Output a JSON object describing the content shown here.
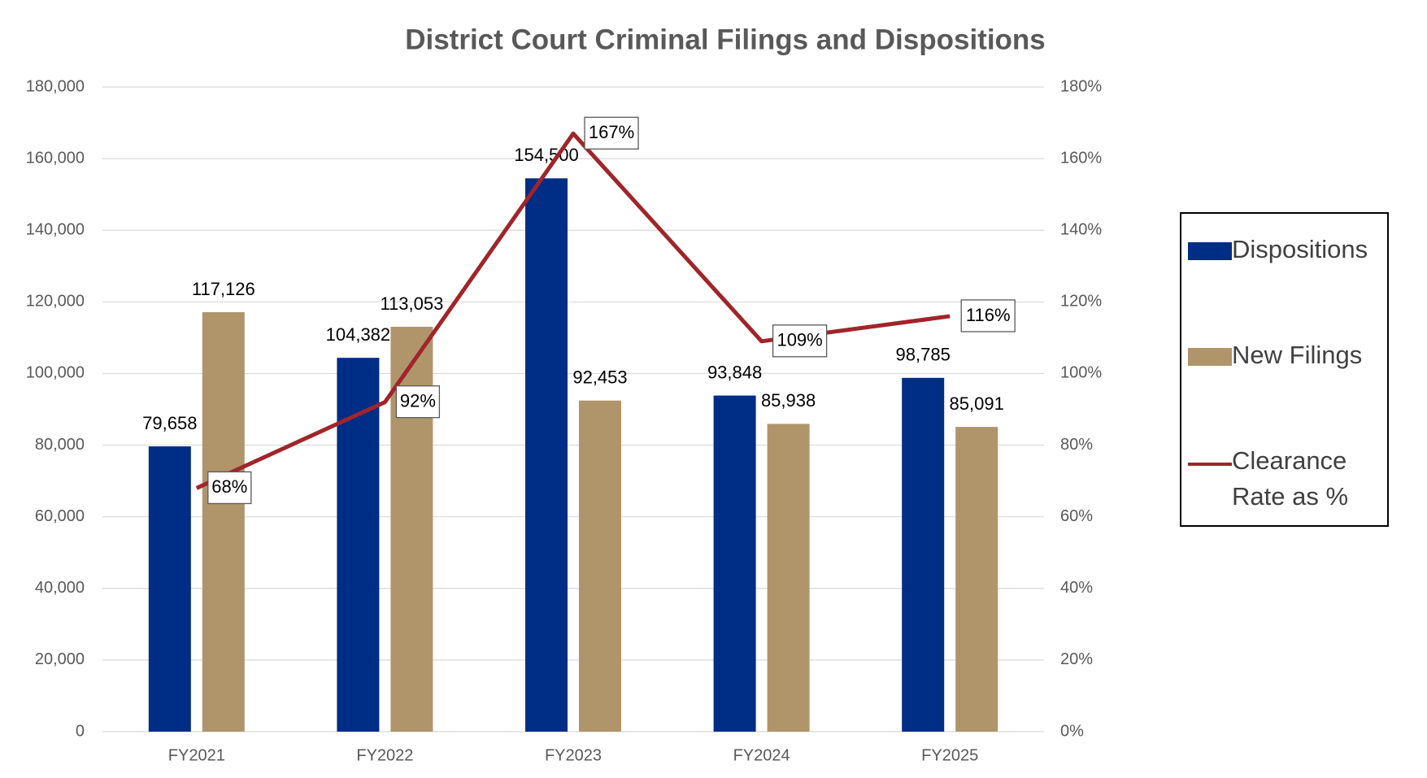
{
  "chart_data": {
    "type": "bar",
    "title": "District Court Criminal Filings and Dispositions",
    "categories": [
      "FY2021",
      "FY2022",
      "FY2023",
      "FY2024",
      "FY2025"
    ],
    "series": [
      {
        "name": "Dispositions",
        "type": "bar",
        "color": "#002d86",
        "values": [
          79658,
          104382,
          154500,
          93848,
          98785
        ],
        "value_labels": [
          "79,658",
          "104,382",
          "154,500",
          "93,848",
          "98,785"
        ]
      },
      {
        "name": "New Filings",
        "type": "bar",
        "color": "#b0956b",
        "values": [
          117126,
          113053,
          92453,
          85938,
          85091
        ],
        "value_labels": [
          "117,126",
          "113,053",
          "92,453",
          "85,938",
          "85,091"
        ]
      },
      {
        "name": "Clearance Rate as %",
        "type": "line",
        "axis": "y2",
        "color": "#a0252a",
        "values": [
          68,
          92,
          167,
          109,
          116
        ],
        "value_labels": [
          "68%",
          "92%",
          "167%",
          "109%",
          "116%"
        ]
      }
    ],
    "ylim": [
      0,
      180000
    ],
    "yticks": [
      0,
      {
        "value": 20000,
        "label": "20,000"
      },
      {
        "value": 40000,
        "label": "40,000"
      },
      {
        "value": 60000,
        "label": "60,000"
      },
      {
        "value": 80000,
        "label": "80,000"
      },
      {
        "value": 100000,
        "label": "100,000"
      },
      {
        "value": 120000,
        "label": "120,000"
      },
      {
        "value": 140000,
        "label": "140,000"
      },
      {
        "value": 160000,
        "label": "160,000"
      },
      {
        "value": 180000,
        "label": "180,000"
      }
    ],
    "y2lim": [
      0,
      180
    ],
    "y2ticks": [
      {
        "value": 0,
        "label": "0%"
      },
      {
        "value": 20,
        "label": "20%"
      },
      {
        "value": 40,
        "label": "40%"
      },
      {
        "value": 60,
        "label": "60%"
      },
      {
        "value": 80,
        "label": "80%"
      },
      {
        "value": 100,
        "label": "100%"
      },
      {
        "value": 120,
        "label": "120%"
      },
      {
        "value": 140,
        "label": "140%"
      },
      {
        "value": 160,
        "label": "160%"
      },
      {
        "value": 180,
        "label": "180%"
      }
    ],
    "grid": true,
    "legend": "right"
  }
}
